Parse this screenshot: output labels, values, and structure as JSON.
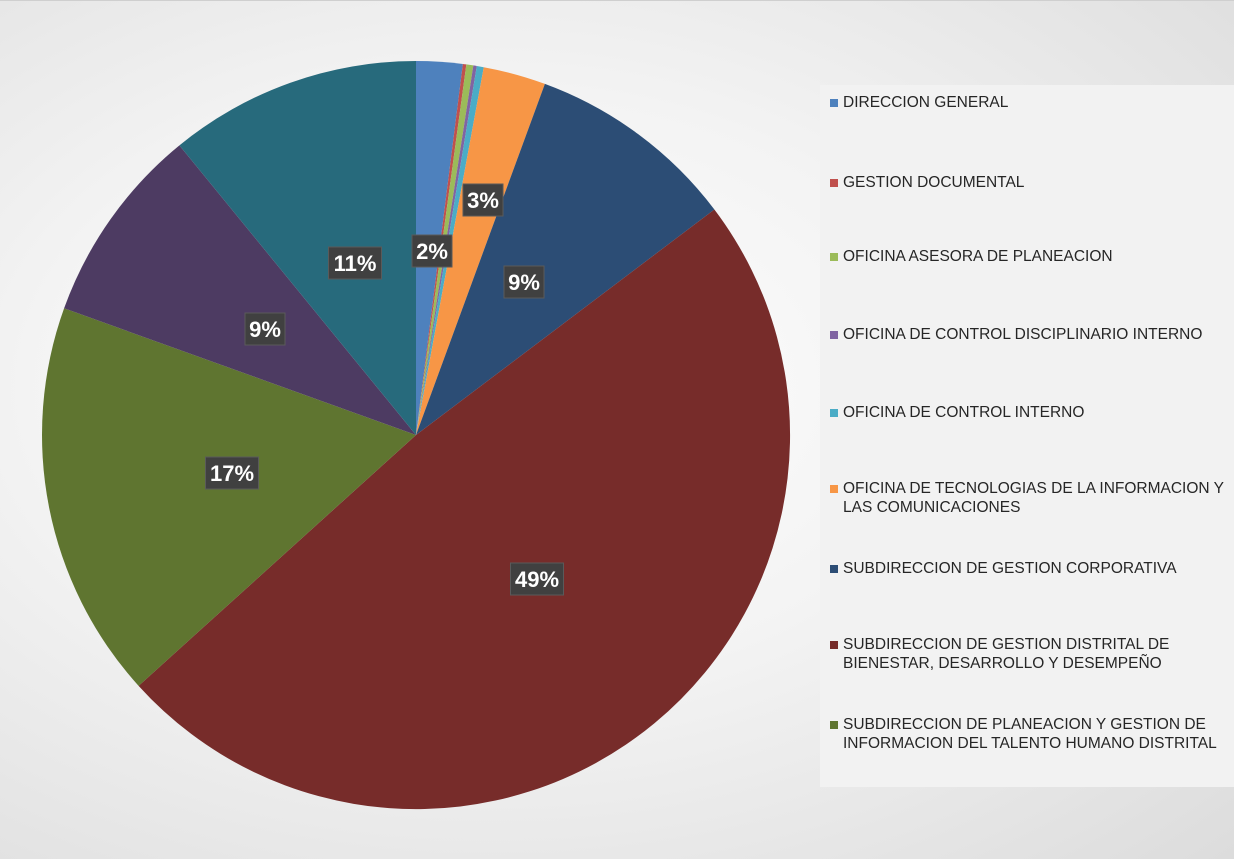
{
  "chart_data": {
    "type": "pie",
    "title": "",
    "slices": [
      {
        "name": "DIRECCION GENERAL",
        "value": 2,
        "label": "2%",
        "color": "#4e81bd"
      },
      {
        "name": "GESTION DOCUMENTAL",
        "value": 0.15,
        "label": "",
        "color": "#c0504d"
      },
      {
        "name": "OFICINA ASESORA DE PLANEACION",
        "value": 0.3,
        "label": "",
        "color": "#9bbb59"
      },
      {
        "name": "OFICINA DE CONTROL DISCIPLINARIO INTERNO",
        "value": 0.15,
        "label": "",
        "color": "#8064a2"
      },
      {
        "name": "OFICINA DE CONTROL INTERNO",
        "value": 0.3,
        "label": "",
        "color": "#4bacc6"
      },
      {
        "name": "OFICINA DE TECNOLOGIAS DE LA INFORMACION Y LAS COMUNICACIONES",
        "value": 2.7,
        "label": "3%",
        "color": "#f79646"
      },
      {
        "name": "SUBDIRECCION DE GESTION CORPORATIVA",
        "value": 9.1,
        "label": "9%",
        "color": "#2c4d75"
      },
      {
        "name": "SUBDIRECCION DE GESTION DISTRITAL DE BIENESTAR, DESARROLLO Y DESEMPEÑO",
        "value": 48.6,
        "label": "49%",
        "color": "#772c2a"
      },
      {
        "name": "SUBDIRECCION DE PLANEACION Y GESTION DE INFORMACION DEL TALENTO HUMANO DISTRITAL",
        "value": 17.2,
        "label": "17%",
        "color": "#5f7530"
      },
      {
        "name": "",
        "value": 8.6,
        "label": "9%",
        "color": "#4d3b62"
      },
      {
        "name": "",
        "value": 10.9,
        "label": "11%",
        "color": "#276a7c"
      }
    ],
    "legend_position": "right"
  }
}
